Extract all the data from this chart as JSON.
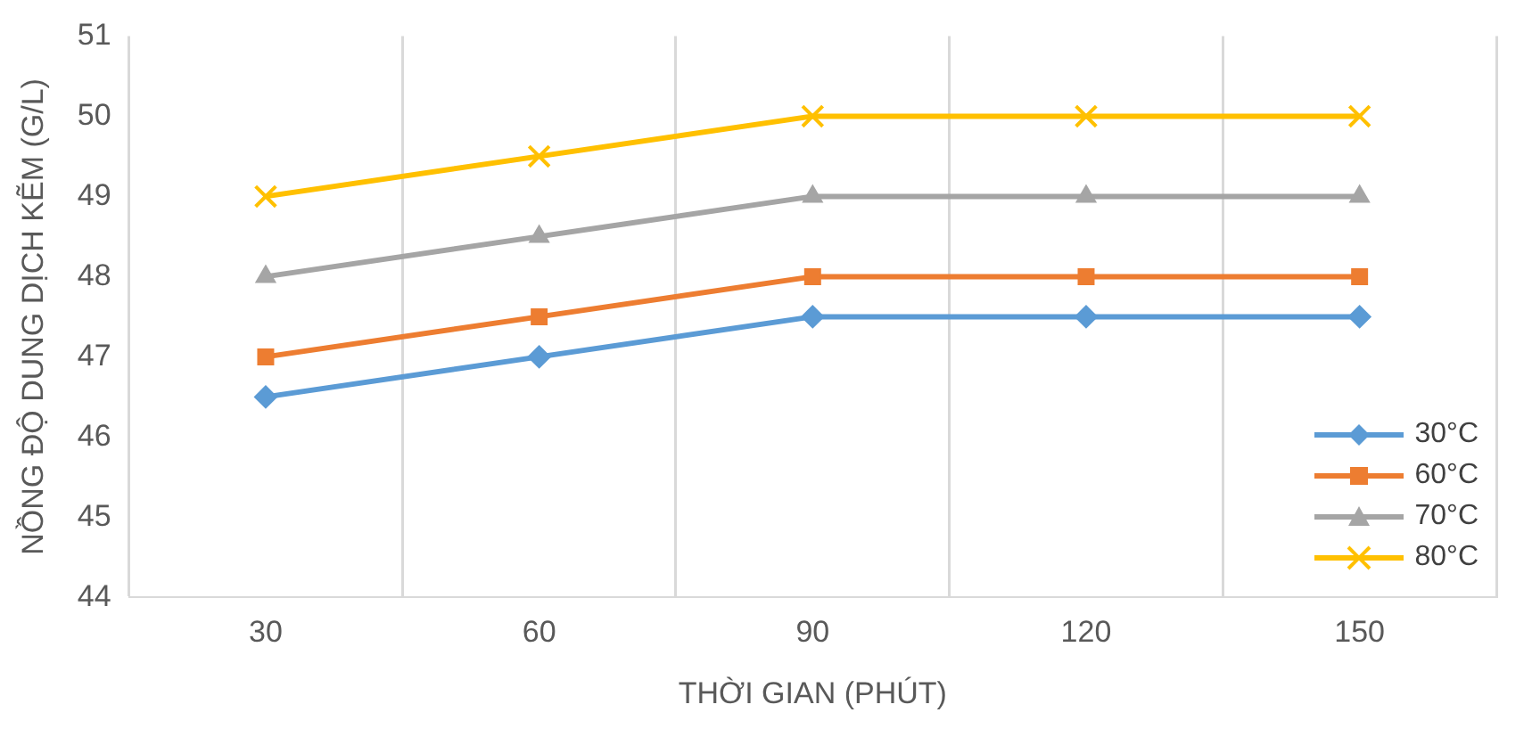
{
  "chart_data": {
    "type": "line",
    "xlabel": "THỜI GIAN (PHÚT)",
    "ylabel": "NỒNG ĐỘ DUNG DỊCH KẼM (G/L)",
    "categories": [
      "30",
      "60",
      "90",
      "120",
      "150"
    ],
    "series": [
      {
        "name": "30°C",
        "color": "#5b9bd5",
        "marker": "diamond",
        "values": [
          46.5,
          47,
          47.5,
          47.5,
          47.5
        ]
      },
      {
        "name": "60°C",
        "color": "#ed7d31",
        "marker": "square",
        "values": [
          47,
          47.5,
          48,
          48,
          48
        ]
      },
      {
        "name": "70°C",
        "color": "#a5a5a5",
        "marker": "triangle",
        "values": [
          48,
          48.5,
          49,
          49,
          49
        ]
      },
      {
        "name": "80°C",
        "color": "#ffc000",
        "marker": "cross",
        "values": [
          49,
          49.5,
          50,
          50,
          50
        ]
      }
    ],
    "ylim": [
      44,
      51
    ],
    "yticks": [
      44,
      45,
      46,
      47,
      48,
      49,
      50,
      51
    ],
    "grid": "x",
    "legend": "bottom right",
    "line_style": "solid"
  }
}
